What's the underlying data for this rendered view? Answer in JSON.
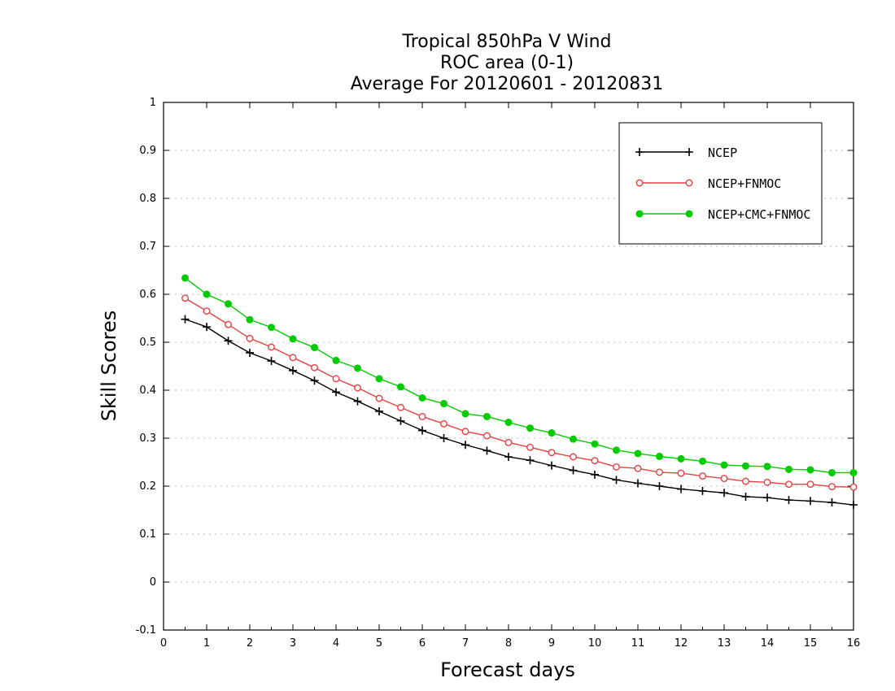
{
  "chart_data": {
    "type": "line",
    "title": [
      "Tropical 850hPa V Wind",
      "ROC area (0-1)",
      "Average For 20120601 - 20120831"
    ],
    "xlabel": "Forecast days",
    "ylabel": "Skill Scores",
    "xlim": [
      0,
      16
    ],
    "ylim": [
      -0.1,
      1
    ],
    "xticks": [
      "0",
      "1",
      "2",
      "3",
      "4",
      "5",
      "6",
      "7",
      "8",
      "9",
      "10",
      "11",
      "12",
      "13",
      "14",
      "15",
      "16"
    ],
    "yticks": [
      "-0.1",
      "0",
      "0.1",
      "0.2",
      "0.3",
      "0.4",
      "0.5",
      "0.6",
      "0.7",
      "0.8",
      "0.9",
      "1"
    ],
    "grid": true,
    "legend_position": "top-right",
    "x": [
      0.5,
      1,
      1.5,
      2,
      2.5,
      3,
      3.5,
      4,
      4.5,
      5,
      5.5,
      6,
      6.5,
      7,
      7.5,
      8,
      8.5,
      9,
      9.5,
      10,
      10.5,
      11,
      11.5,
      12,
      12.5,
      13,
      13.5,
      14,
      14.5,
      15,
      15.5,
      16
    ],
    "series": [
      {
        "name": "NCEP",
        "color": "#000000",
        "marker": "plus",
        "values": [
          0.548,
          0.532,
          0.503,
          0.478,
          0.461,
          0.441,
          0.42,
          0.396,
          0.377,
          0.356,
          0.336,
          0.316,
          0.3,
          0.286,
          0.274,
          0.261,
          0.254,
          0.243,
          0.233,
          0.224,
          0.213,
          0.206,
          0.2,
          0.194,
          0.19,
          0.186,
          0.178,
          0.176,
          0.171,
          0.169,
          0.166,
          0.161
        ]
      },
      {
        "name": "NCEP+FNMOC",
        "color": "#e64040",
        "marker": "open-circle",
        "values": [
          0.592,
          0.565,
          0.537,
          0.508,
          0.49,
          0.468,
          0.447,
          0.424,
          0.405,
          0.383,
          0.364,
          0.345,
          0.33,
          0.314,
          0.305,
          0.291,
          0.281,
          0.27,
          0.261,
          0.253,
          0.24,
          0.237,
          0.229,
          0.227,
          0.221,
          0.216,
          0.21,
          0.208,
          0.204,
          0.204,
          0.199,
          0.198
        ]
      },
      {
        "name": "NCEP+CMC+FNMOC",
        "color": "#00cc00",
        "marker": "filled-circle",
        "values": [
          0.634,
          0.6,
          0.58,
          0.547,
          0.531,
          0.507,
          0.489,
          0.462,
          0.446,
          0.424,
          0.407,
          0.384,
          0.372,
          0.351,
          0.345,
          0.333,
          0.321,
          0.311,
          0.298,
          0.288,
          0.275,
          0.268,
          0.262,
          0.257,
          0.252,
          0.244,
          0.242,
          0.241,
          0.235,
          0.234,
          0.228,
          0.228
        ]
      }
    ]
  }
}
